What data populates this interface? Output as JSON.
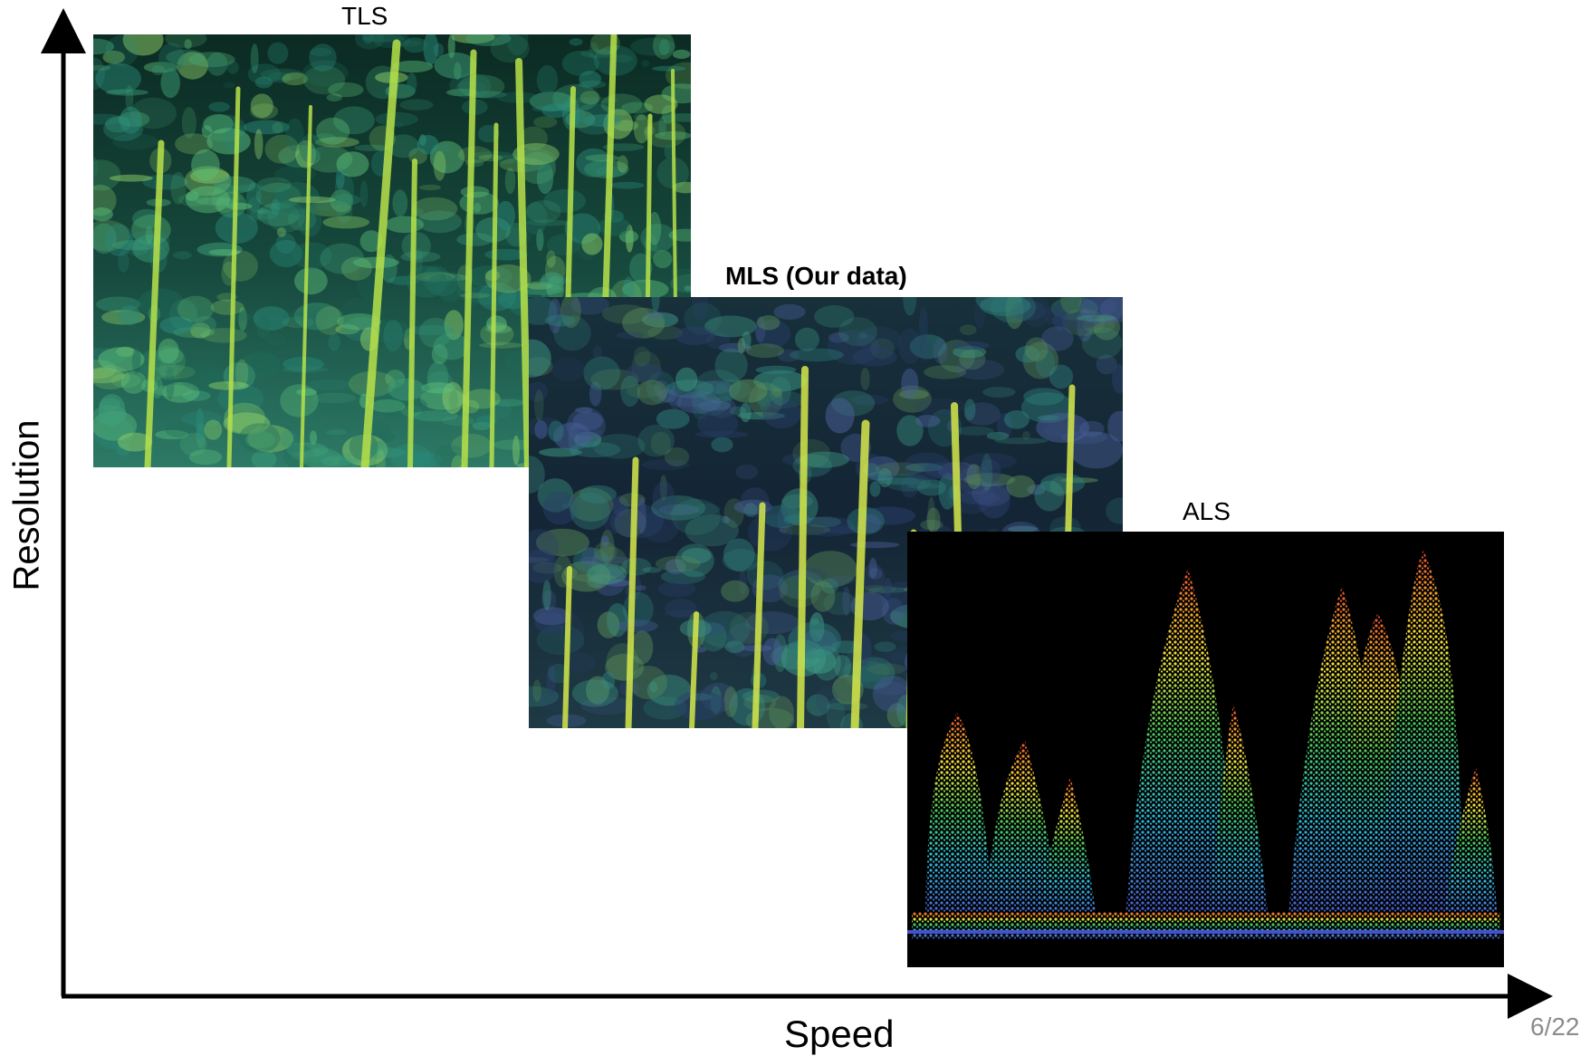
{
  "axes": {
    "x_label": "Speed",
    "y_label": "Resolution"
  },
  "panels": [
    {
      "label": "TLS",
      "emphasis": false,
      "palette": [
        "#0c2a22",
        "#1f6b5a",
        "#3fa07a",
        "#b8e24a"
      ]
    },
    {
      "label": "MLS (Our data)",
      "emphasis": true,
      "palette": [
        "#0e1a1f",
        "#2a3f6a",
        "#2f7f7a",
        "#d6e84a"
      ]
    },
    {
      "label": "ALS",
      "emphasis": false,
      "palette": [
        "#000000",
        "#4a4fc8",
        "#2fb8d6",
        "#49c85a",
        "#f2e23a",
        "#e8442a"
      ]
    }
  ],
  "page_number": "6/22"
}
